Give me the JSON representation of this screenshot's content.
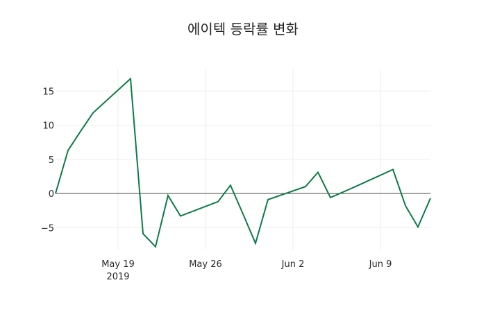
{
  "title": "에이텍 등락률 변화",
  "colors": {
    "line": "#0c7b45",
    "grid": "#eeeeee",
    "zeroline": "#444444"
  },
  "chart_data": {
    "type": "line",
    "title": "에이텍 등락률 변화",
    "xlabel": "",
    "ylabel": "",
    "x_tick_labels": [
      "May 19\n2019",
      "May 26",
      "Jun 2",
      "Jun 9"
    ],
    "y_tick_labels": [
      "−5",
      "0",
      "5",
      "10",
      "15"
    ],
    "ylim": [
      -8.2,
      18.2
    ],
    "xlim": [
      "2019-05-14",
      "2019-06-13"
    ],
    "grid": true,
    "legend": false,
    "series": [
      {
        "name": "등락률",
        "x": [
          "2019-05-14",
          "2019-05-15",
          "2019-05-16",
          "2019-05-17",
          "2019-05-20",
          "2019-05-21",
          "2019-05-22",
          "2019-05-23",
          "2019-05-24",
          "2019-05-27",
          "2019-05-28",
          "2019-05-29",
          "2019-05-30",
          "2019-05-31",
          "2019-06-03",
          "2019-06-04",
          "2019-06-05",
          "2019-06-07",
          "2019-06-10",
          "2019-06-11",
          "2019-06-12",
          "2019-06-13"
        ],
        "values": [
          0.0,
          6.3,
          9.1,
          11.8,
          16.8,
          -5.9,
          -7.8,
          -0.3,
          -3.3,
          -1.2,
          1.2,
          -3.0,
          -7.3,
          -0.9,
          1.0,
          3.1,
          -0.6,
          1.0,
          3.5,
          -1.8,
          -4.9,
          -0.7
        ]
      }
    ]
  }
}
